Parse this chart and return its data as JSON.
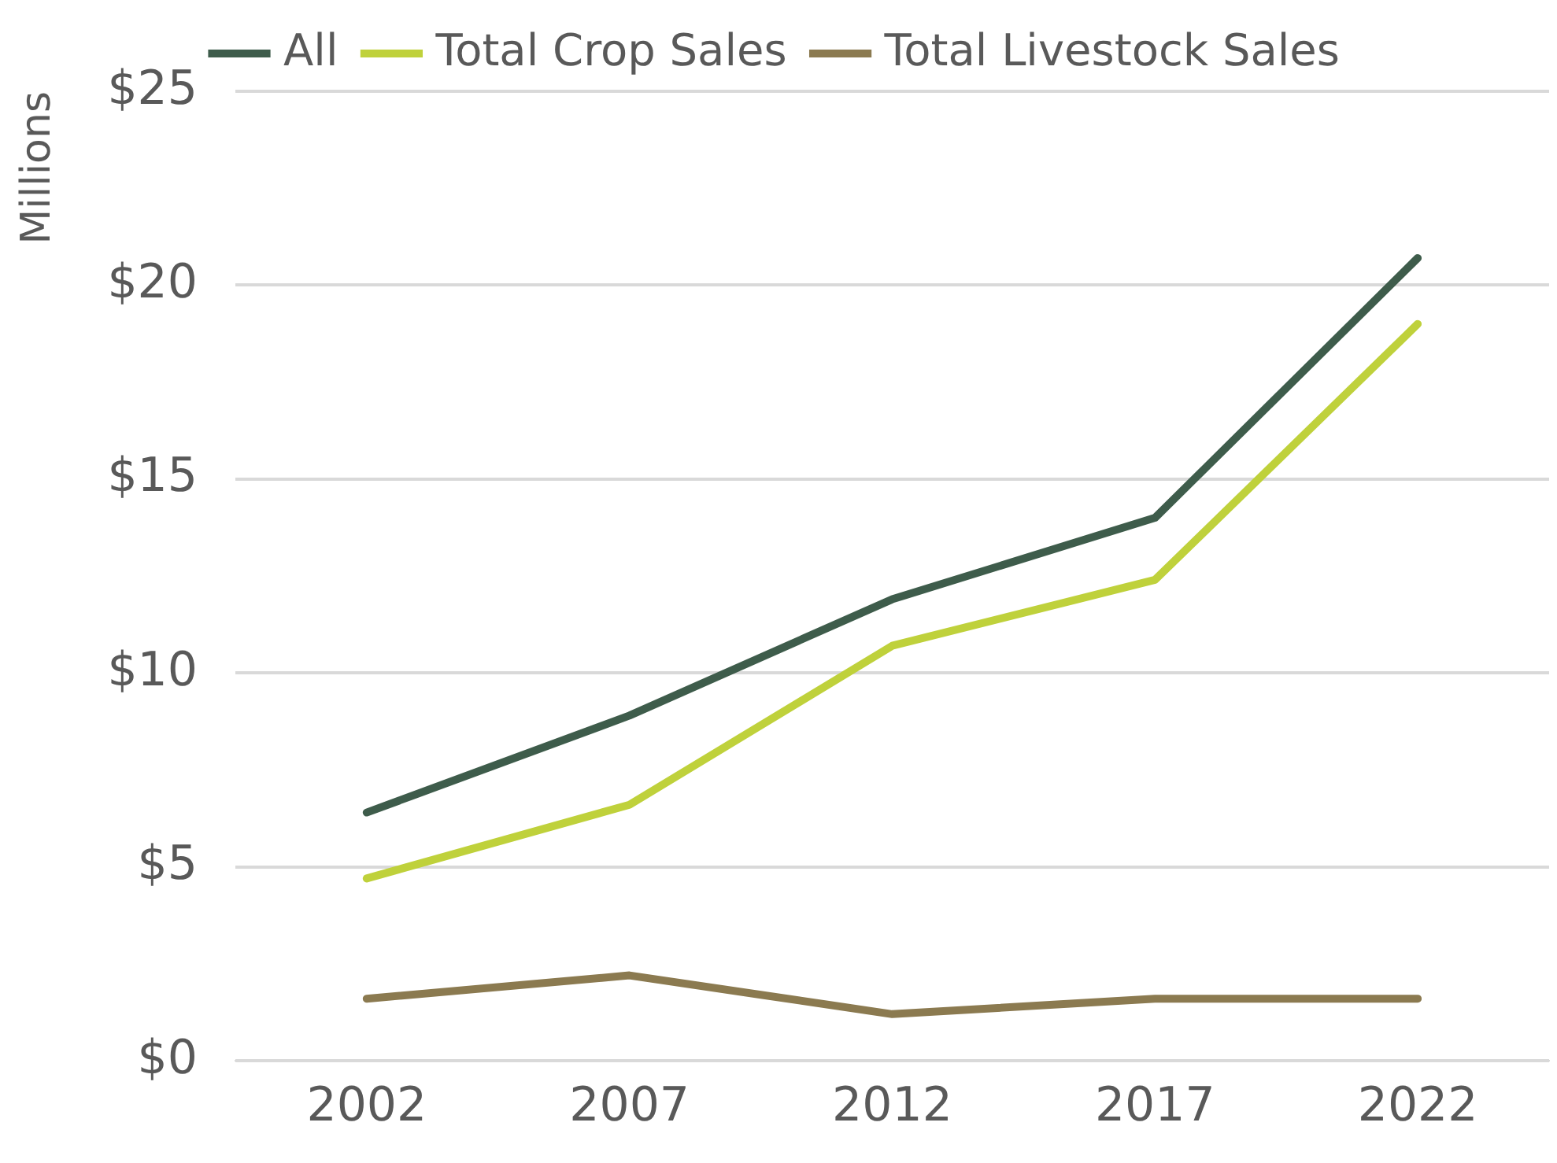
{
  "chart_data": {
    "type": "line",
    "ylabel": "Millions",
    "categories": [
      "2002",
      "2007",
      "2012",
      "2017",
      "2022"
    ],
    "series": [
      {
        "name": "All",
        "color": "#3e5c4b",
        "values": [
          6.4,
          8.9,
          11.9,
          14.0,
          20.7
        ]
      },
      {
        "name": "Total Crop Sales",
        "color": "#bfd13b",
        "values": [
          4.7,
          6.6,
          10.7,
          12.4,
          19.0
        ]
      },
      {
        "name": "Total Livestock Sales",
        "color": "#8b7a50",
        "values": [
          1.6,
          2.2,
          1.2,
          1.6,
          1.6
        ]
      }
    ],
    "ylim": [
      0,
      25
    ],
    "yticks": [
      {
        "value": 0,
        "label": "$0"
      },
      {
        "value": 5,
        "label": "$5"
      },
      {
        "value": 10,
        "label": "$10"
      },
      {
        "value": 15,
        "label": "$15"
      },
      {
        "value": 20,
        "label": "$20"
      },
      {
        "value": 25,
        "label": "$25"
      }
    ],
    "grid": "y",
    "legend": "top",
    "marker": "none",
    "line_style": "solid"
  }
}
